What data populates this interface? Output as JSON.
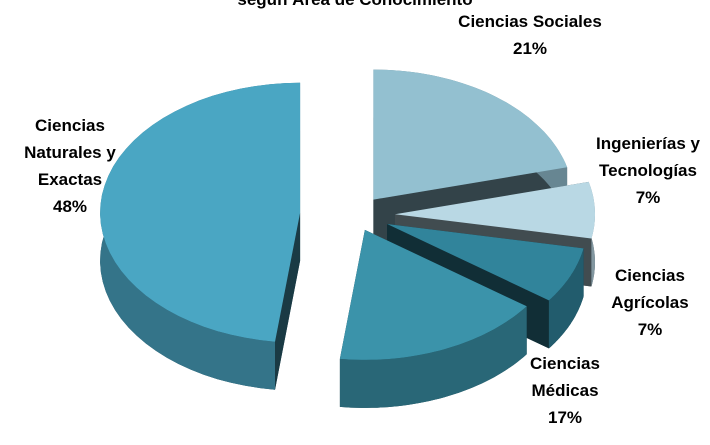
{
  "chart_data": {
    "type": "pie",
    "title": "según Área de Conocimiento",
    "categories": [
      "Ciencias Sociales",
      "Ingenierías y Tecnologías",
      "Ciencias Agrícolas",
      "Ciencias Médicas",
      "Ciencias Naturales y Exactas"
    ],
    "values": [
      21,
      7,
      7,
      17,
      48
    ],
    "value_labels": [
      "21%",
      "7%",
      "7%",
      "17%",
      "48%"
    ],
    "colors": [
      "#93c0d0",
      "#b9d8e4",
      "#31849b",
      "#3b93aa",
      "#4aa6c3"
    ]
  }
}
